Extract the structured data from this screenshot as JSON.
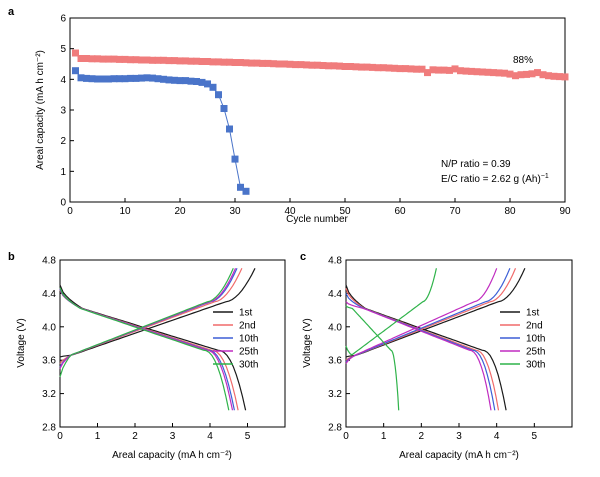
{
  "chart_data": [
    {
      "panel": "a",
      "type": "scatter",
      "xlabel": "Cycle number",
      "ylabel": "Areal capacity (mA h cm⁻²)",
      "xlim": [
        0,
        90
      ],
      "ylim": [
        0,
        6
      ],
      "xticks": [
        "0",
        "10",
        "20",
        "30",
        "40",
        "50",
        "60",
        "70",
        "80",
        "90"
      ],
      "yticks": [
        "0",
        "1",
        "2",
        "3",
        "4",
        "5",
        "6"
      ],
      "annotations": {
        "retention": "88%",
        "np_ratio": "N/P ratio = 0.39",
        "ec_ratio_main": "E/C ratio = 2.62 g (Ah)",
        "ec_ratio_exp": "−1"
      },
      "series": [
        {
          "color": "#f07c7c",
          "marker": "square",
          "x": [
            1,
            2,
            3,
            4,
            5,
            6,
            7,
            8,
            9,
            10,
            11,
            12,
            13,
            14,
            15,
            16,
            17,
            18,
            19,
            20,
            21,
            22,
            23,
            24,
            25,
            26,
            27,
            28,
            29,
            30,
            31,
            32,
            33,
            34,
            35,
            36,
            37,
            38,
            39,
            40,
            41,
            42,
            43,
            44,
            45,
            46,
            47,
            48,
            49,
            50,
            51,
            52,
            53,
            54,
            55,
            56,
            57,
            58,
            59,
            60,
            61,
            62,
            63,
            64,
            65,
            66,
            67,
            68,
            69,
            70,
            71,
            72,
            73,
            74,
            75,
            76,
            77,
            78,
            79,
            80,
            81,
            82,
            83,
            84,
            85,
            86,
            87,
            88,
            89,
            90
          ],
          "y": [
            4.86,
            4.68,
            4.68,
            4.67,
            4.67,
            4.66,
            4.66,
            4.66,
            4.65,
            4.65,
            4.64,
            4.64,
            4.63,
            4.63,
            4.62,
            4.62,
            4.62,
            4.61,
            4.61,
            4.6,
            4.6,
            4.59,
            4.59,
            4.58,
            4.58,
            4.57,
            4.57,
            4.56,
            4.56,
            4.55,
            4.55,
            4.54,
            4.53,
            4.53,
            4.52,
            4.52,
            4.51,
            4.5,
            4.5,
            4.49,
            4.48,
            4.48,
            4.47,
            4.46,
            4.46,
            4.45,
            4.44,
            4.44,
            4.43,
            4.42,
            4.42,
            4.41,
            4.4,
            4.4,
            4.39,
            4.38,
            4.38,
            4.37,
            4.36,
            4.35,
            4.35,
            4.34,
            4.33,
            4.33,
            4.22,
            4.31,
            4.3,
            4.3,
            4.29,
            4.34,
            4.28,
            4.27,
            4.26,
            4.25,
            4.24,
            4.23,
            4.22,
            4.21,
            4.2,
            4.17,
            4.12,
            4.15,
            4.16,
            4.18,
            4.22,
            4.15,
            4.12,
            4.1,
            4.09,
            4.08
          ]
        },
        {
          "color": "#4a74c9",
          "marker": "square",
          "x": [
            1,
            2,
            3,
            4,
            5,
            6,
            7,
            8,
            9,
            10,
            11,
            12,
            13,
            14,
            15,
            16,
            17,
            18,
            19,
            20,
            21,
            22,
            23,
            24,
            25,
            26,
            27,
            28,
            29,
            30,
            31,
            32
          ],
          "y": [
            4.28,
            4.05,
            4.03,
            4.02,
            4.01,
            4.01,
            4.01,
            4.02,
            4.02,
            4.02,
            4.03,
            4.03,
            4.04,
            4.05,
            4.04,
            4.02,
            4.0,
            3.98,
            3.97,
            3.96,
            3.96,
            3.94,
            3.93,
            3.9,
            3.85,
            3.74,
            3.5,
            3.05,
            2.38,
            1.4,
            0.48,
            0.35
          ]
        }
      ]
    },
    {
      "panel": "b",
      "type": "line",
      "xlabel": "Areal capacity (mA h cm⁻²)",
      "ylabel": "Voltage (V)",
      "xlim": [
        0,
        6
      ],
      "ylim": [
        2.8,
        4.8
      ],
      "xticks": [
        "0",
        "1",
        "2",
        "3",
        "4",
        "5"
      ],
      "yticks": [
        "2.8",
        "3.2",
        "3.6",
        "4.0",
        "4.4",
        "4.8"
      ],
      "legend_position": "right",
      "series": [
        {
          "name": "1st",
          "color": "#1a1a1a",
          "discharge_capacity": 4.95,
          "charge_capacity": 5.2,
          "charge_start": 3.64,
          "discharge_start": 4.5
        },
        {
          "name": "2nd",
          "color": "#f06a6a",
          "discharge_capacity": 4.75,
          "charge_capacity": 4.85,
          "charge_start": 3.56,
          "discharge_start": 4.44
        },
        {
          "name": "10th",
          "color": "#3d5fd6",
          "discharge_capacity": 4.65,
          "charge_capacity": 4.72,
          "charge_start": 3.52,
          "discharge_start": 4.45
        },
        {
          "name": "25th",
          "color": "#c02cc0",
          "discharge_capacity": 4.6,
          "charge_capacity": 4.68,
          "charge_start": 3.5,
          "discharge_start": 4.46
        },
        {
          "name": "30th",
          "color": "#2fb34a",
          "discharge_capacity": 4.5,
          "charge_capacity": 4.62,
          "charge_start": 3.4,
          "discharge_start": 4.47
        }
      ]
    },
    {
      "panel": "c",
      "type": "line",
      "xlabel": "Areal capacity (mA h cm⁻²)",
      "ylabel": "Voltage (V)",
      "xlim": [
        0,
        6
      ],
      "ylim": [
        2.8,
        4.8
      ],
      "xticks": [
        "0",
        "1",
        "2",
        "3",
        "4",
        "5"
      ],
      "yticks": [
        "2.8",
        "3.2",
        "3.6",
        "4.0",
        "4.4",
        "4.8"
      ],
      "legend_position": "right",
      "series": [
        {
          "name": "1st",
          "color": "#1a1a1a",
          "discharge_capacity": 4.25,
          "charge_capacity": 4.75,
          "charge_start": 3.64,
          "discharge_start": 4.5
        },
        {
          "name": "2nd",
          "color": "#f06a6a",
          "discharge_capacity": 4.05,
          "charge_capacity": 4.5,
          "charge_start": 3.6,
          "discharge_start": 4.46
        },
        {
          "name": "10th",
          "color": "#3d5fd6",
          "discharge_capacity": 3.95,
          "charge_capacity": 4.35,
          "charge_start": 3.58,
          "discharge_start": 4.4
        },
        {
          "name": "25th",
          "color": "#c02cc0",
          "discharge_capacity": 3.85,
          "charge_capacity": 4.0,
          "charge_start": 3.56,
          "discharge_start": 4.3
        },
        {
          "name": "30th",
          "color": "#2fb34a",
          "discharge_capacity": 1.4,
          "charge_capacity": 2.4,
          "charge_start": 3.77,
          "discharge_start": 4.25
        }
      ]
    }
  ]
}
